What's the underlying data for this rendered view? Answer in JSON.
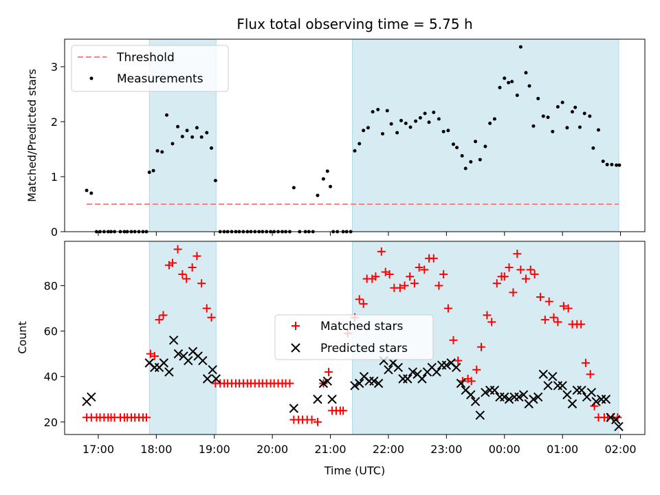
{
  "chart_data": [
    {
      "type": "scatter",
      "title": "Flux total observing time = 5.75 h",
      "xlabel": "",
      "ylabel": "Matched/Predicted stars",
      "ylim": [
        0,
        3.5
      ],
      "yticks": [
        0,
        1,
        2,
        3
      ],
      "grid": false,
      "legend_position": "top-left",
      "shaded_intervals": [
        [
          17.88,
          19.03
        ],
        [
          21.38,
          25.97
        ]
      ],
      "threshold": {
        "name": "Threshold",
        "y": 0.5,
        "x_range": [
          16.8,
          25.97
        ],
        "color": "#ff7f7f",
        "style": "dashed"
      },
      "series": [
        {
          "name": "Measurements",
          "marker": "dot",
          "color": "#000000",
          "x": [
            16.8,
            16.88,
            16.97,
            17.03,
            17.1,
            17.17,
            17.22,
            17.28,
            17.38,
            17.45,
            17.5,
            17.57,
            17.63,
            17.7,
            17.77,
            17.83,
            17.88,
            17.95,
            18.02,
            18.1,
            18.18,
            18.28,
            18.37,
            18.45,
            18.53,
            18.62,
            18.7,
            18.78,
            18.87,
            18.95,
            19.02,
            19.1,
            19.17,
            19.23,
            19.3,
            19.37,
            19.43,
            19.5,
            19.57,
            19.63,
            19.7,
            19.77,
            19.83,
            19.9,
            19.97,
            20.03,
            20.1,
            20.17,
            20.23,
            20.3,
            20.37,
            20.47,
            20.57,
            20.63,
            20.7,
            20.78,
            20.88,
            20.95,
            21.0,
            21.05,
            21.12,
            21.22,
            21.28,
            21.35,
            21.42,
            21.5,
            21.57,
            21.65,
            21.73,
            21.82,
            21.9,
            21.98,
            22.05,
            22.15,
            22.22,
            22.3,
            22.38,
            22.47,
            22.55,
            22.63,
            22.7,
            22.78,
            22.87,
            22.95,
            23.03,
            23.12,
            23.18,
            23.27,
            23.33,
            23.42,
            23.5,
            23.58,
            23.67,
            23.75,
            23.83,
            23.92,
            24.0,
            24.07,
            24.13,
            24.22,
            24.28,
            24.37,
            24.43,
            24.5,
            24.58,
            24.67,
            24.75,
            24.83,
            24.92,
            25.0,
            25.08,
            25.17,
            25.22,
            25.3,
            25.38,
            25.47,
            25.53,
            25.62,
            25.7,
            25.77,
            25.85,
            25.93,
            25.98
          ],
          "y": [
            0.75,
            0.7,
            0,
            0,
            0,
            0,
            0,
            0,
            0,
            0,
            0,
            0,
            0,
            0,
            0,
            0,
            1.08,
            1.11,
            1.47,
            1.45,
            2.12,
            1.6,
            1.91,
            1.73,
            1.84,
            1.72,
            1.89,
            1.72,
            1.8,
            1.52,
            0.93,
            0,
            0,
            0,
            0,
            0,
            0,
            0,
            0,
            0,
            0,
            0,
            0,
            0,
            0,
            0,
            0,
            0,
            0,
            0,
            0.8,
            0,
            0,
            0,
            0,
            0.66,
            0.96,
            1.1,
            0.82,
            0,
            0,
            0,
            0,
            0,
            1.47,
            1.6,
            1.84,
            1.89,
            2.18,
            2.22,
            1.78,
            2.2,
            1.96,
            1.8,
            2.02,
            1.97,
            1.9,
            2.01,
            2.07,
            2.15,
            1.99,
            2.17,
            2.05,
            1.82,
            1.84,
            1.59,
            1.53,
            1.38,
            1.15,
            1.27,
            1.64,
            1.31,
            1.55,
            1.97,
            2.05,
            2.62,
            2.79,
            2.71,
            2.73,
            2.48,
            3.36,
            2.89,
            2.65,
            1.92,
            2.42,
            2.1,
            2.08,
            1.82,
            2.27,
            2.35,
            1.89,
            2.18,
            2.26,
            1.9,
            2.15,
            2.1,
            1.52,
            1.85,
            1.28,
            1.22,
            1.22,
            1.21,
            1.21
          ]
        }
      ]
    },
    {
      "type": "scatter",
      "title": "",
      "xlabel": "Time (UTC)",
      "ylabel": "Count",
      "ylim": [
        14.5,
        99.5
      ],
      "yticks": [
        20,
        40,
        60,
        80
      ],
      "xlim": [
        16.42,
        26.42
      ],
      "xticks": [
        "17:00",
        "18:00",
        "19:00",
        "20:00",
        "21:00",
        "22:00",
        "23:00",
        "00:00",
        "01:00",
        "02:00"
      ],
      "xtick_values": [
        17,
        18,
        19,
        20,
        21,
        22,
        23,
        24,
        25,
        26
      ],
      "grid": false,
      "legend_position": "center",
      "shaded_intervals": [
        [
          17.88,
          19.03
        ],
        [
          21.38,
          25.97
        ]
      ],
      "series": [
        {
          "name": "Matched stars",
          "marker": "plus",
          "color": "#ff0000",
          "x": [
            16.8,
            16.88,
            16.97,
            17.03,
            17.1,
            17.17,
            17.22,
            17.28,
            17.38,
            17.45,
            17.5,
            17.57,
            17.63,
            17.7,
            17.77,
            17.83,
            17.9,
            17.97,
            18.05,
            18.12,
            18.22,
            18.28,
            18.37,
            18.45,
            18.52,
            18.62,
            18.7,
            18.78,
            18.87,
            18.95,
            19.02,
            19.1,
            19.17,
            19.23,
            19.3,
            19.37,
            19.43,
            19.5,
            19.57,
            19.63,
            19.7,
            19.77,
            19.83,
            19.9,
            19.97,
            20.03,
            20.1,
            20.17,
            20.23,
            20.3,
            20.37,
            20.45,
            20.52,
            20.6,
            20.68,
            20.78,
            20.88,
            20.97,
            21.03,
            21.1,
            21.17,
            21.22,
            21.3,
            21.42,
            21.5,
            21.57,
            21.63,
            21.72,
            21.78,
            21.88,
            21.95,
            22.02,
            22.1,
            22.2,
            22.28,
            22.37,
            22.45,
            22.53,
            22.62,
            22.7,
            22.78,
            22.87,
            22.95,
            23.03,
            23.12,
            23.2,
            23.28,
            23.37,
            23.43,
            23.52,
            23.6,
            23.7,
            23.78,
            23.87,
            23.95,
            24.0,
            24.08,
            24.15,
            24.22,
            24.28,
            24.37,
            24.45,
            24.52,
            24.62,
            24.7,
            24.77,
            24.85,
            24.92,
            25.02,
            25.1,
            25.17,
            25.25,
            25.32,
            25.4,
            25.48,
            25.55,
            25.62,
            25.72,
            25.78,
            25.87,
            25.95
          ],
          "y": [
            22,
            22,
            22,
            22,
            22,
            22,
            22,
            22,
            22,
            22,
            22,
            22,
            22,
            22,
            22,
            22,
            50,
            49,
            65,
            67,
            89,
            90,
            96,
            85,
            83,
            88,
            93,
            81,
            70,
            66,
            37,
            37,
            37,
            37,
            37,
            37,
            37,
            37,
            37,
            37,
            37,
            37,
            37,
            37,
            37,
            37,
            37,
            37,
            37,
            37,
            21,
            21,
            21,
            21,
            21,
            20,
            37,
            42,
            25,
            25,
            25,
            25,
            59,
            66,
            74,
            72,
            83,
            83,
            84,
            95,
            86,
            85,
            79,
            79,
            80,
            84,
            81,
            88,
            87,
            92,
            92,
            80,
            85,
            70,
            56,
            47,
            38,
            39,
            38,
            43,
            53,
            67,
            64,
            81,
            84,
            84,
            88,
            77,
            94,
            87,
            83,
            87,
            85,
            75,
            65,
            73,
            66,
            64,
            71,
            70,
            63,
            63,
            63,
            46,
            41,
            27,
            22,
            22,
            22,
            22,
            22
          ],
          "note_count_matches_x": true
        },
        {
          "name": "Predicted stars",
          "marker": "x",
          "color": "#000000",
          "x": [
            16.8,
            16.88,
            17.88,
            17.97,
            18.05,
            18.13,
            18.22,
            18.3,
            18.38,
            18.47,
            18.55,
            18.63,
            18.72,
            18.8,
            18.88,
            18.97,
            19.03,
            20.37,
            20.78,
            20.88,
            20.95,
            21.03,
            21.42,
            21.5,
            21.58,
            21.67,
            21.75,
            21.83,
            21.92,
            22.0,
            22.08,
            22.17,
            22.25,
            22.33,
            22.42,
            22.5,
            22.58,
            22.67,
            22.75,
            22.83,
            22.92,
            23.0,
            23.08,
            23.17,
            23.25,
            23.33,
            23.42,
            23.5,
            23.58,
            23.67,
            23.75,
            23.83,
            23.92,
            24.0,
            24.08,
            24.17,
            24.25,
            24.33,
            24.42,
            24.5,
            24.58,
            24.67,
            24.75,
            24.83,
            24.92,
            25.0,
            25.08,
            25.17,
            25.25,
            25.33,
            25.42,
            25.5,
            25.58,
            25.67,
            25.75,
            25.83,
            25.92,
            25.97
          ],
          "y": [
            29,
            31,
            46,
            44,
            44,
            46,
            42,
            56,
            50,
            49,
            47,
            51,
            49,
            47,
            39,
            43,
            39,
            26,
            30,
            37,
            38,
            30,
            36,
            37,
            40,
            38,
            38,
            37,
            47,
            43,
            46,
            44,
            39,
            39,
            42,
            41,
            39,
            42,
            44,
            42,
            45,
            45,
            46,
            44,
            37,
            34,
            32,
            29,
            23,
            33,
            34,
            34,
            31,
            31,
            30,
            31,
            31,
            32,
            28,
            30,
            31,
            41,
            36,
            40,
            36,
            36,
            32,
            28,
            34,
            34,
            31,
            33,
            29,
            30,
            30,
            22,
            21,
            18
          ]
        }
      ]
    }
  ]
}
